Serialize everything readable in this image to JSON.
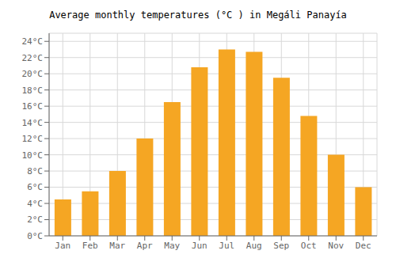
{
  "chart_data": {
    "type": "bar",
    "title": "Average monthly temperatures (°C ) in Megáli Panayía",
    "categories": [
      "Jan",
      "Feb",
      "Mar",
      "Apr",
      "May",
      "Jun",
      "Jul",
      "Aug",
      "Sep",
      "Oct",
      "Nov",
      "Dec"
    ],
    "values": [
      4.5,
      5.5,
      8.0,
      12.0,
      16.5,
      20.8,
      23.0,
      22.7,
      19.5,
      14.8,
      10.0,
      6.0
    ],
    "color": "#F5A623",
    "ylim": [
      0,
      25
    ],
    "yticks": [
      {
        "value": 0,
        "label": "0°C"
      },
      {
        "value": 2,
        "label": "2°C"
      },
      {
        "value": 4,
        "label": "4°C"
      },
      {
        "value": 6,
        "label": "6°C"
      },
      {
        "value": 8,
        "label": "8°C"
      },
      {
        "value": 10,
        "label": "10°C"
      },
      {
        "value": 12,
        "label": "12°C"
      },
      {
        "value": 14,
        "label": "14°C"
      },
      {
        "value": 16,
        "label": "16°C"
      },
      {
        "value": 18,
        "label": "18°C"
      },
      {
        "value": 20,
        "label": "20°C"
      },
      {
        "value": 22,
        "label": "22°C"
      },
      {
        "value": 24,
        "label": "24°C"
      }
    ],
    "grid": true
  }
}
